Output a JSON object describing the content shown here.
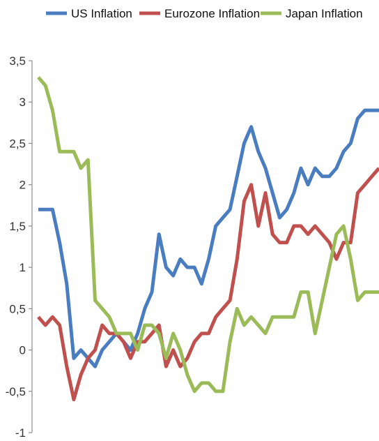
{
  "chart_data": {
    "type": "line",
    "title": "",
    "xlabel": "",
    "ylabel": "",
    "ylim": [
      -1,
      3.5
    ],
    "yticks": [
      -1,
      -0.5,
      0,
      0.5,
      1,
      1.5,
      2,
      2.5,
      3,
      3.5
    ],
    "ytick_labels": [
      "-1",
      "-0,5",
      "0",
      "0,5",
      "1",
      "1,5",
      "2",
      "2,5",
      "3",
      "3,5"
    ],
    "grid": false,
    "legend_position": "top",
    "x": [
      0,
      1,
      2,
      3,
      4,
      5,
      6,
      7,
      8,
      9,
      10,
      11,
      12,
      13,
      14,
      15,
      16,
      17,
      18,
      19,
      20,
      21,
      22,
      23,
      24,
      25,
      26,
      27,
      28,
      29,
      30,
      31,
      32,
      33,
      34,
      35,
      36,
      37,
      38,
      39,
      40,
      41,
      42,
      43,
      44,
      45,
      46,
      47,
      48
    ],
    "series": [
      {
        "name": "US Inflation",
        "color": "#4a7dbf",
        "values": [
          1.7,
          1.7,
          1.7,
          1.3,
          0.8,
          -0.1,
          0,
          -0.1,
          -0.2,
          0,
          0.1,
          0.2,
          0.1,
          0,
          0.2,
          0.5,
          0.7,
          1.4,
          1,
          0.9,
          1.1,
          1,
          1,
          0.8,
          1.1,
          1.5,
          1.6,
          1.7,
          2.1,
          2.5,
          2.7,
          2.4,
          2.2,
          1.9,
          1.6,
          1.7,
          1.9,
          2.2,
          2,
          2.2,
          2.1,
          2.1,
          2.2,
          2.4,
          2.5,
          2.8,
          2.9,
          2.9,
          2.9
        ]
      },
      {
        "name": "Eurozone Inflation",
        "color": "#c0504d",
        "values": [
          0.4,
          0.3,
          0.4,
          0.3,
          -0.2,
          -0.6,
          -0.3,
          -0.1,
          0,
          0.3,
          0.2,
          0.2,
          0.1,
          -0.1,
          0.1,
          0.1,
          0.2,
          0.3,
          -0.2,
          0,
          -0.2,
          -0.1,
          0.1,
          0.2,
          0.2,
          0.4,
          0.5,
          0.6,
          1.1,
          1.8,
          2,
          1.5,
          1.9,
          1.4,
          1.3,
          1.3,
          1.5,
          1.5,
          1.4,
          1.5,
          1.4,
          1.3,
          1.1,
          1.3,
          1.3,
          1.9,
          2,
          2.1,
          2.2
        ]
      },
      {
        "name": "Japan Inflation",
        "color": "#9bbb59",
        "values": [
          3.3,
          3.2,
          2.9,
          2.4,
          2.4,
          2.4,
          2.2,
          2.3,
          0.6,
          0.5,
          0.4,
          0.2,
          0.2,
          0.2,
          0,
          0.3,
          0.3,
          0.2,
          -0.1,
          0.2,
          0,
          -0.3,
          -0.5,
          -0.4,
          -0.4,
          -0.5,
          -0.5,
          0.1,
          0.5,
          0.3,
          0.4,
          0.3,
          0.2,
          0.4,
          0.4,
          0.4,
          0.4,
          0.7,
          0.7,
          0.2,
          0.6,
          1,
          1.4,
          1.5,
          1.1,
          0.6,
          0.7,
          0.7,
          0.7
        ]
      }
    ]
  }
}
